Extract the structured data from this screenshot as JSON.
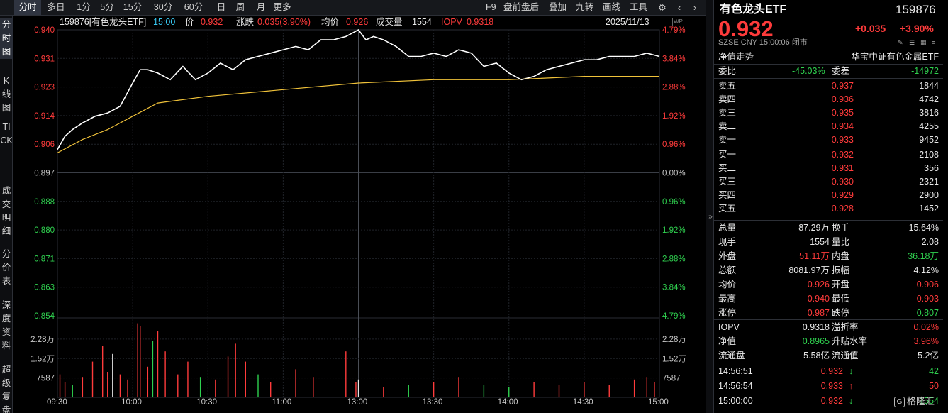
{
  "toolbar": {
    "periods": [
      "分时",
      "多日",
      "1分",
      "5分",
      "15分",
      "30分",
      "60分",
      "日",
      "周",
      "月",
      "更多"
    ],
    "active_period": "分时",
    "tools": [
      "F9",
      "盘前盘后",
      "叠加",
      "九转",
      "画线",
      "工具"
    ]
  },
  "sidenav": {
    "items": [
      "分时图",
      "K线图",
      "TICK",
      "成交明细",
      "分价表",
      "深度资料",
      "超级复盘"
    ],
    "active": "分时图"
  },
  "infobar": {
    "code_name": "159876[有色龙头ETF]",
    "time": "15:00",
    "price_label": "价",
    "price": "0.932",
    "change_label": "涨跌",
    "change": "0.035(3.90%)",
    "avg_label": "均价",
    "avg": "0.926",
    "volume_label": "成交量",
    "volume": "1554",
    "iopv_label": "IOPV",
    "iopv": "0.9318",
    "date": "2025/11/13"
  },
  "chart_data": {
    "type": "line",
    "title": "159876[有色龙头ETF] 分时",
    "prev_close": 0.897,
    "ylim": [
      0.854,
      0.94
    ],
    "price_ticks": [
      "0.940",
      "0.931",
      "0.923",
      "0.914",
      "0.906",
      "0.897",
      "0.888",
      "0.880",
      "0.871",
      "0.863",
      "0.854"
    ],
    "pct_ticks": [
      "4.79%",
      "3.84%",
      "2.88%",
      "1.92%",
      "0.96%",
      "0.00%",
      "0.96%",
      "1.92%",
      "2.88%",
      "3.84%",
      "4.79%"
    ],
    "x_ticks": [
      "09:30",
      "10:00",
      "10:30",
      "11:00",
      "13:00",
      "13:30",
      "14:00",
      "14:30",
      "15:00"
    ],
    "volume_ticks": [
      "2.28万",
      "1.52万",
      "7587"
    ],
    "volume_max": 30000,
    "series": [
      {
        "name": "价",
        "color": "#ffffff",
        "x": [
          "09:30",
          "09:33",
          "09:36",
          "09:40",
          "09:45",
          "09:50",
          "09:55",
          "10:00",
          "10:03",
          "10:06",
          "10:10",
          "10:15",
          "10:20",
          "10:25",
          "10:30",
          "10:35",
          "10:40",
          "10:45",
          "10:50",
          "10:55",
          "11:00",
          "11:05",
          "11:10",
          "11:15",
          "11:20",
          "11:25",
          "11:30",
          "13:03",
          "13:06",
          "13:10",
          "13:15",
          "13:20",
          "13:25",
          "13:30",
          "13:35",
          "13:40",
          "13:45",
          "13:50",
          "13:55",
          "14:00",
          "14:05",
          "14:10",
          "14:15",
          "14:20",
          "14:25",
          "14:30",
          "14:35",
          "14:40",
          "14:45",
          "14:50",
          "14:55",
          "15:00"
        ],
        "values": [
          0.904,
          0.908,
          0.91,
          0.912,
          0.914,
          0.915,
          0.917,
          0.924,
          0.928,
          0.928,
          0.927,
          0.925,
          0.929,
          0.925,
          0.927,
          0.93,
          0.928,
          0.931,
          0.932,
          0.933,
          0.934,
          0.935,
          0.934,
          0.937,
          0.937,
          0.938,
          0.94,
          0.937,
          0.938,
          0.937,
          0.935,
          0.932,
          0.932,
          0.933,
          0.932,
          0.934,
          0.933,
          0.929,
          0.93,
          0.927,
          0.925,
          0.926,
          0.928,
          0.929,
          0.93,
          0.931,
          0.931,
          0.932,
          0.932,
          0.932,
          0.933,
          0.932
        ]
      },
      {
        "name": "均价",
        "color": "#f0c23a",
        "x": [
          "09:30",
          "09:40",
          "09:50",
          "10:00",
          "10:10",
          "10:20",
          "10:30",
          "11:00",
          "11:30",
          "13:30",
          "14:00",
          "14:30",
          "15:00"
        ],
        "values": [
          0.903,
          0.907,
          0.91,
          0.914,
          0.918,
          0.919,
          0.92,
          0.922,
          0.924,
          0.925,
          0.925,
          0.926,
          0.926
        ]
      }
    ],
    "volumes": [
      {
        "t": "09:31",
        "v": 9000,
        "c": "r"
      },
      {
        "t": "09:33",
        "v": 6000,
        "c": "r"
      },
      {
        "t": "09:36",
        "v": 5000,
        "c": "g"
      },
      {
        "t": "09:40",
        "v": 8000,
        "c": "r"
      },
      {
        "t": "09:44",
        "v": 14000,
        "c": "r"
      },
      {
        "t": "09:48",
        "v": 20000,
        "c": "r"
      },
      {
        "t": "09:50",
        "v": 10000,
        "c": "r"
      },
      {
        "t": "09:52",
        "v": 17000,
        "c": "w"
      },
      {
        "t": "09:55",
        "v": 9000,
        "c": "r"
      },
      {
        "t": "09:58",
        "v": 7000,
        "c": "r"
      },
      {
        "t": "10:02",
        "v": 29000,
        "c": "r"
      },
      {
        "t": "10:03",
        "v": 28000,
        "c": "r"
      },
      {
        "t": "10:06",
        "v": 12000,
        "c": "r"
      },
      {
        "t": "10:08",
        "v": 22000,
        "c": "g"
      },
      {
        "t": "10:10",
        "v": 26000,
        "c": "r"
      },
      {
        "t": "10:13",
        "v": 18000,
        "c": "r"
      },
      {
        "t": "10:18",
        "v": 9000,
        "c": "r"
      },
      {
        "t": "10:22",
        "v": 14000,
        "c": "r"
      },
      {
        "t": "10:27",
        "v": 8000,
        "c": "g"
      },
      {
        "t": "10:33",
        "v": 7000,
        "c": "r"
      },
      {
        "t": "10:38",
        "v": 16000,
        "c": "r"
      },
      {
        "t": "10:41",
        "v": 21000,
        "c": "r"
      },
      {
        "t": "10:45",
        "v": 14000,
        "c": "r"
      },
      {
        "t": "10:50",
        "v": 9000,
        "c": "g"
      },
      {
        "t": "10:55",
        "v": 6000,
        "c": "r"
      },
      {
        "t": "11:05",
        "v": 11000,
        "c": "r"
      },
      {
        "t": "11:12",
        "v": 8000,
        "c": "r"
      },
      {
        "t": "11:25",
        "v": 18000,
        "c": "r"
      },
      {
        "t": "11:29",
        "v": 6000,
        "c": "r"
      },
      {
        "t": "13:00",
        "v": 7000,
        "c": "w"
      },
      {
        "t": "13:10",
        "v": 4000,
        "c": "r"
      },
      {
        "t": "13:20",
        "v": 5000,
        "c": "g"
      },
      {
        "t": "13:30",
        "v": 6000,
        "c": "r"
      },
      {
        "t": "13:40",
        "v": 8000,
        "c": "r"
      },
      {
        "t": "13:50",
        "v": 5000,
        "c": "g"
      },
      {
        "t": "14:00",
        "v": 4000,
        "c": "g"
      },
      {
        "t": "14:10",
        "v": 6000,
        "c": "r"
      },
      {
        "t": "14:20",
        "v": 5000,
        "c": "r"
      },
      {
        "t": "14:30",
        "v": 6000,
        "c": "r"
      },
      {
        "t": "14:40",
        "v": 5000,
        "c": "r"
      },
      {
        "t": "14:50",
        "v": 7000,
        "c": "r"
      },
      {
        "t": "14:55",
        "v": 8000,
        "c": "r"
      },
      {
        "t": "14:58",
        "v": 6000,
        "c": "r"
      }
    ],
    "grid": true,
    "cursor_line": "13:00"
  },
  "panel": {
    "name": "有色龙头ETF",
    "code": "159876",
    "price": "0.932",
    "change": "+0.035",
    "change_pct": "+3.90%",
    "meta": "SZSE  CNY  15:00:06  闭市",
    "nav_trend": "净值走势",
    "fund_name": "华宝中证有色金属ETF",
    "weibi_label": "委比",
    "weibi": "-45.03%",
    "weicha_label": "委差",
    "weicha": "-14972",
    "asks": [
      {
        "label": "卖五",
        "price": "0.937",
        "vol": "1844"
      },
      {
        "label": "卖四",
        "price": "0.936",
        "vol": "4742"
      },
      {
        "label": "卖三",
        "price": "0.935",
        "vol": "3816"
      },
      {
        "label": "卖二",
        "price": "0.934",
        "vol": "4255"
      },
      {
        "label": "卖一",
        "price": "0.933",
        "vol": "9452"
      }
    ],
    "bids": [
      {
        "label": "买一",
        "price": "0.932",
        "vol": "2108"
      },
      {
        "label": "买二",
        "price": "0.931",
        "vol": "356"
      },
      {
        "label": "买三",
        "price": "0.930",
        "vol": "2321"
      },
      {
        "label": "买四",
        "price": "0.929",
        "vol": "2900"
      },
      {
        "label": "买五",
        "price": "0.928",
        "vol": "1452"
      }
    ],
    "stats": [
      [
        "总量",
        "87.29万",
        "换手",
        "15.64%"
      ],
      [
        "现手",
        "1554",
        "量比",
        "2.08"
      ],
      [
        "外盘",
        "51.11万",
        "内盘",
        "36.18万"
      ],
      [
        "总额",
        "8081.97万",
        "振幅",
        "4.12%"
      ],
      [
        "均价",
        "0.926",
        "开盘",
        "0.906"
      ],
      [
        "最高",
        "0.940",
        "最低",
        "0.903"
      ],
      [
        "涨停",
        "0.987",
        "跌停",
        "0.807"
      ]
    ],
    "fund_stats": [
      [
        "IOPV",
        "0.9318",
        "溢折率",
        "0.02%"
      ],
      [
        "净值",
        "0.8965",
        "升贴水率",
        "3.96%"
      ],
      [
        "流通盘",
        "5.58亿",
        "流通值",
        "5.2亿"
      ]
    ],
    "ticks": [
      {
        "time": "14:56:51",
        "price": "0.932",
        "dir": "down",
        "vol": "42"
      },
      {
        "time": "14:56:54",
        "price": "0.933",
        "dir": "up",
        "vol": "50"
      },
      {
        "time": "15:00:00",
        "price": "0.932",
        "dir": "down",
        "vol": "1554"
      }
    ],
    "watermark": "格隆汇"
  }
}
